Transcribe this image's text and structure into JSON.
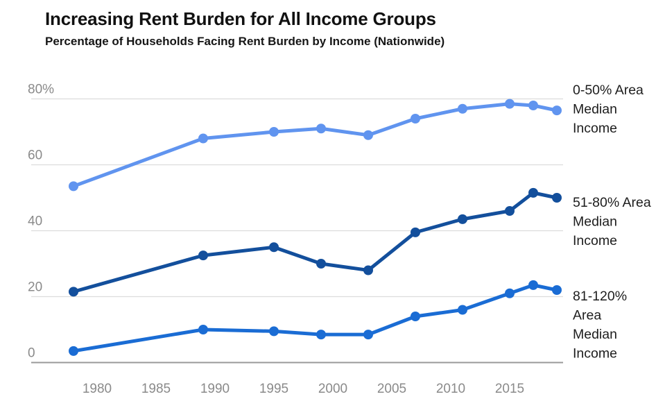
{
  "header": {
    "title": "Increasing Rent Burden for All Income Groups",
    "subtitle": "Percentage of Households Facing Rent Burden by Income (Nationwide)"
  },
  "chart_data": {
    "type": "line",
    "title": "Increasing Rent Burden for All Income Groups",
    "subtitle": "Percentage of Households Facing Rent Burden by Income (Nationwide)",
    "xlabel": "",
    "ylabel": "",
    "x": [
      1978,
      1989,
      1995,
      1999,
      2003,
      2007,
      2011,
      2015,
      2017,
      2019
    ],
    "series": [
      {
        "name": "0-50% Area Median Income",
        "label_lines": [
          "0-50% Area",
          "Median",
          "Income"
        ],
        "color": "#6094ef",
        "values": [
          53.5,
          68,
          70,
          71,
          69,
          74,
          77,
          78.5,
          78,
          76.5
        ]
      },
      {
        "name": "51-80% Area Median Income",
        "label_lines": [
          "51-80% Area",
          "Median",
          "Income"
        ],
        "color": "#134f9c",
        "values": [
          21.5,
          32.5,
          35,
          30,
          28,
          39.5,
          43.5,
          46,
          51.5,
          50
        ]
      },
      {
        "name": "81-120% Area Median Income",
        "label_lines": [
          "81-120%",
          "Area",
          "Median",
          "Income"
        ],
        "color": "#1a6cd4",
        "values": [
          3.5,
          10,
          9.5,
          8.5,
          8.5,
          14,
          16,
          21,
          23.5,
          22
        ]
      }
    ],
    "y_ticks": [
      {
        "value": 0,
        "label": "0"
      },
      {
        "value": 20,
        "label": "20"
      },
      {
        "value": 40,
        "label": "40"
      },
      {
        "value": 60,
        "label": "60"
      },
      {
        "value": 80,
        "label": "80%"
      }
    ],
    "x_ticks": [
      1980,
      1985,
      1990,
      1995,
      2000,
      2005,
      2010,
      2015
    ],
    "ylim": [
      0,
      80
    ],
    "xlim": [
      1976,
      2020
    ],
    "grid": "horizontal",
    "legend_position": "right-edge-labels",
    "colors": {
      "gridline": "#dcdcdc",
      "baseline": "#999999",
      "tick_text": "#8a8a8a",
      "series_label_text": "#1d1d1d",
      "title_text": "#111111"
    }
  }
}
